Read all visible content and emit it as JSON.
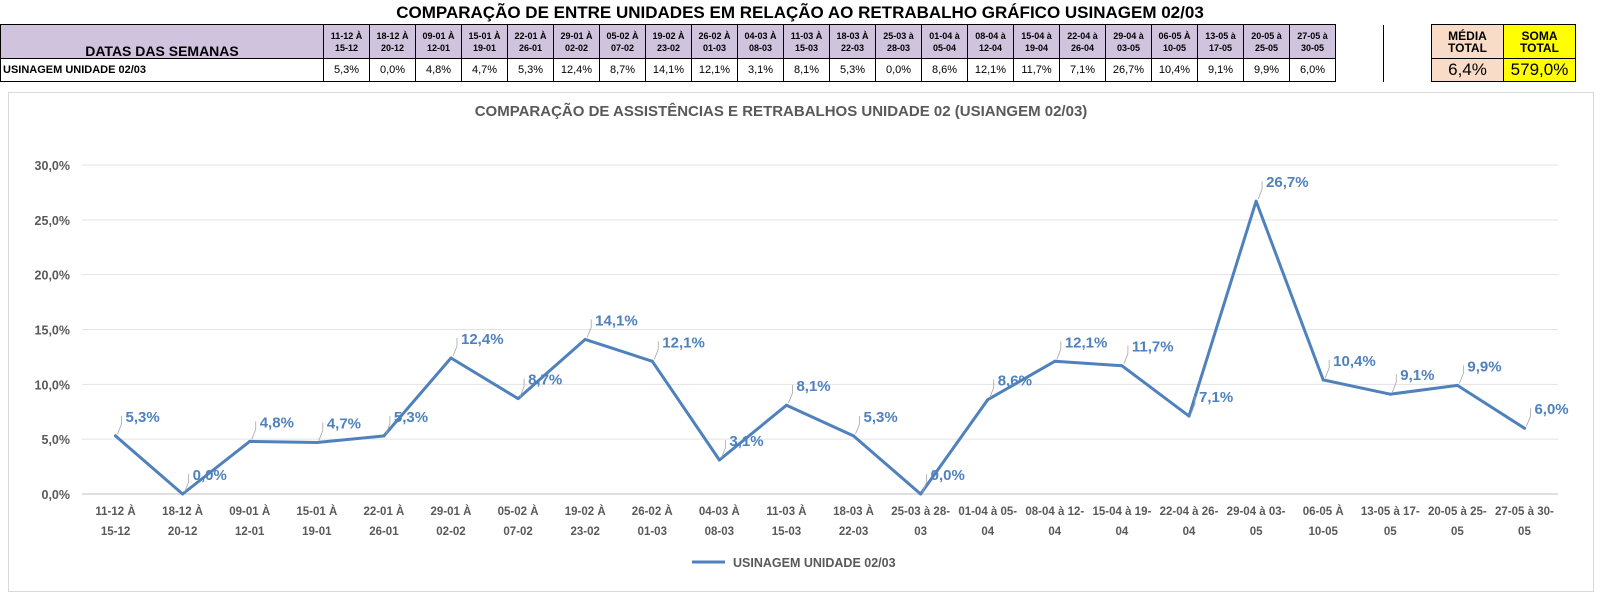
{
  "sheet": {
    "title": "COMPARAÇÃO DE ENTRE UNIDADES EM RELAÇÃO AO RETRABALHO GRÁFICO USINAGEM 02/03",
    "header_label": "DATAS DAS SEMANAS",
    "row_label": "USINAGEM UNIDADE 02/03",
    "weeks": [
      {
        "top": "11-12 À",
        "bottom": "15-12"
      },
      {
        "top": "18-12 À",
        "bottom": "20-12"
      },
      {
        "top": "09-01 À",
        "bottom": "12-01"
      },
      {
        "top": "15-01 À",
        "bottom": "19-01"
      },
      {
        "top": "22-01 À",
        "bottom": "26-01"
      },
      {
        "top": "29-01 À",
        "bottom": "02-02"
      },
      {
        "top": "05-02 À",
        "bottom": "07-02"
      },
      {
        "top": "19-02 À",
        "bottom": "23-02"
      },
      {
        "top": "26-02 À",
        "bottom": "01-03"
      },
      {
        "top": "04-03 À",
        "bottom": "08-03"
      },
      {
        "top": "11-03 À",
        "bottom": "15-03"
      },
      {
        "top": "18-03 À",
        "bottom": "22-03"
      },
      {
        "top": "25-03 à",
        "bottom": "28-03"
      },
      {
        "top": "01-04 à",
        "bottom": "05-04"
      },
      {
        "top": "08-04 à",
        "bottom": "12-04"
      },
      {
        "top": "15-04 à",
        "bottom": "19-04"
      },
      {
        "top": "22-04 à",
        "bottom": "26-04"
      },
      {
        "top": "29-04 à",
        "bottom": "03-05"
      },
      {
        "top": "06-05 À",
        "bottom": "10-05"
      },
      {
        "top": "13-05 à",
        "bottom": "17-05"
      },
      {
        "top": "20-05 à",
        "bottom": "25-05"
      },
      {
        "top": "27-05 à",
        "bottom": "30-05"
      }
    ],
    "values": [
      "5,3%",
      "0,0%",
      "4,8%",
      "4,7%",
      "5,3%",
      "12,4%",
      "8,7%",
      "14,1%",
      "12,1%",
      "3,1%",
      "8,1%",
      "5,3%",
      "0,0%",
      "8,6%",
      "12,1%",
      "11,7%",
      "7,1%",
      "26,7%",
      "10,4%",
      "9,1%",
      "9,9%",
      "6,0%"
    ],
    "media": {
      "label_top": "MÉDIA",
      "label_bottom": "TOTAL",
      "value": "6,4%"
    },
    "soma": {
      "label_top": "SOMA",
      "label_bottom": "TOTAL",
      "value": "579,0%"
    }
  },
  "chart_data": {
    "type": "line",
    "title": "COMPARAÇÃO DE ASSISTÊNCIAS E RETRABALHOS UNIDADE 02  (USIANGEM 02/03)",
    "categories": [
      [
        "11-12 À",
        "15-12"
      ],
      [
        "18-12 À",
        "20-12"
      ],
      [
        "09-01 À",
        "12-01"
      ],
      [
        "15-01 À",
        "19-01"
      ],
      [
        "22-01 À",
        "26-01"
      ],
      [
        "29-01 À",
        "02-02"
      ],
      [
        "05-02 À",
        "07-02"
      ],
      [
        "19-02 À",
        "23-02"
      ],
      [
        "26-02 À",
        "01-03"
      ],
      [
        "04-03 À",
        "08-03"
      ],
      [
        "11-03 À",
        "15-03"
      ],
      [
        "18-03 À",
        "22-03"
      ],
      [
        "25-03 à 28-",
        "03"
      ],
      [
        "01-04 à 05-",
        "04"
      ],
      [
        "08-04 à 12-",
        "04"
      ],
      [
        "15-04 à 19-",
        "04"
      ],
      [
        "22-04 à 26-",
        "04"
      ],
      [
        "29-04 à 03-",
        "05"
      ],
      [
        "06-05 À",
        "10-05"
      ],
      [
        "13-05 à 17-",
        "05"
      ],
      [
        "20-05 à 25-",
        "05"
      ],
      [
        "27-05 à 30-",
        "05"
      ]
    ],
    "series": [
      {
        "name": "USINAGEM UNIDADE 02/03",
        "color": "#4f81bd",
        "values": [
          5.3,
          0.0,
          4.8,
          4.7,
          5.3,
          12.4,
          8.7,
          14.1,
          12.1,
          3.1,
          8.1,
          5.3,
          0.0,
          8.6,
          12.1,
          11.7,
          7.1,
          26.7,
          10.4,
          9.1,
          9.9,
          6.0
        ],
        "labels": [
          "5,3%",
          "0,0%",
          "4,8%",
          "4,7%",
          "5,3%",
          "12,4%",
          "8,7%",
          "14,1%",
          "12,1%",
          "3,1%",
          "8,1%",
          "5,3%",
          "0,0%",
          "8,6%",
          "12,1%",
          "11,7%",
          "7,1%",
          "26,7%",
          "10,4%",
          "9,1%",
          "9,9%",
          "6,0%"
        ]
      }
    ],
    "y_ticks": [
      "0,0%",
      "5,0%",
      "10,0%",
      "15,0%",
      "20,0%",
      "25,0%",
      "30,0%"
    ],
    "ylim": [
      0,
      30
    ],
    "grid": true,
    "legend_position": "bottom",
    "label_color": "#4f81bd"
  }
}
